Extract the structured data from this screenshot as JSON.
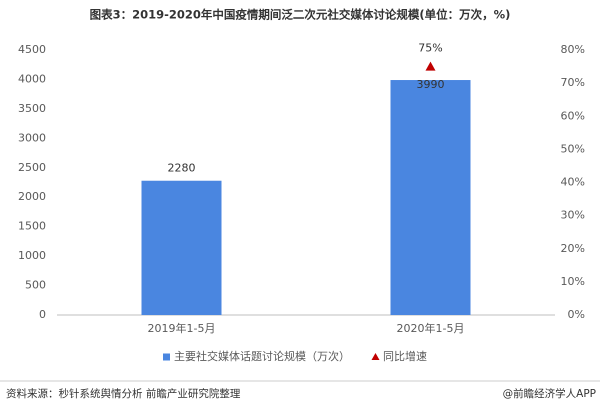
{
  "chart_data": {
    "type": "bar",
    "title": "图表3：2019-2020年中国疫情期间泛二次元社交媒体讨论规模(单位：万次，%)",
    "categories": [
      "2019年1-5月",
      "2020年1-5月"
    ],
    "series": [
      {
        "name": "主要社交媒体话题讨论规模（万次）",
        "type": "bar",
        "color": "#4a86e0",
        "values": [
          2280,
          3990
        ]
      },
      {
        "name": "同比增速",
        "type": "scatter",
        "marker": "triangle",
        "axis": "y2",
        "color": "#c00000",
        "values": [
          null,
          75
        ],
        "value_labels": [
          null,
          "75%"
        ]
      }
    ],
    "ylim": [
      0,
      4500
    ],
    "yticks": [
      0,
      500,
      1000,
      1500,
      2000,
      2500,
      3000,
      3500,
      4000,
      4500
    ],
    "y2lim": [
      0,
      80
    ],
    "y2ticks": [
      {
        "value": 0,
        "label": "0%"
      },
      {
        "value": 10,
        "label": "10%"
      },
      {
        "value": 20,
        "label": "20%"
      },
      {
        "value": 30,
        "label": "30%"
      },
      {
        "value": 40,
        "label": "40%"
      },
      {
        "value": 50,
        "label": "50%"
      },
      {
        "value": 60,
        "label": "60%"
      },
      {
        "value": 70,
        "label": "70%"
      },
      {
        "value": 80,
        "label": "80%"
      }
    ],
    "grid": false,
    "legend": "bottom",
    "source": "资料来源：秒针系统舆情分析 前瞻产业研究院整理",
    "credit": "@前瞻经济学人APP"
  }
}
